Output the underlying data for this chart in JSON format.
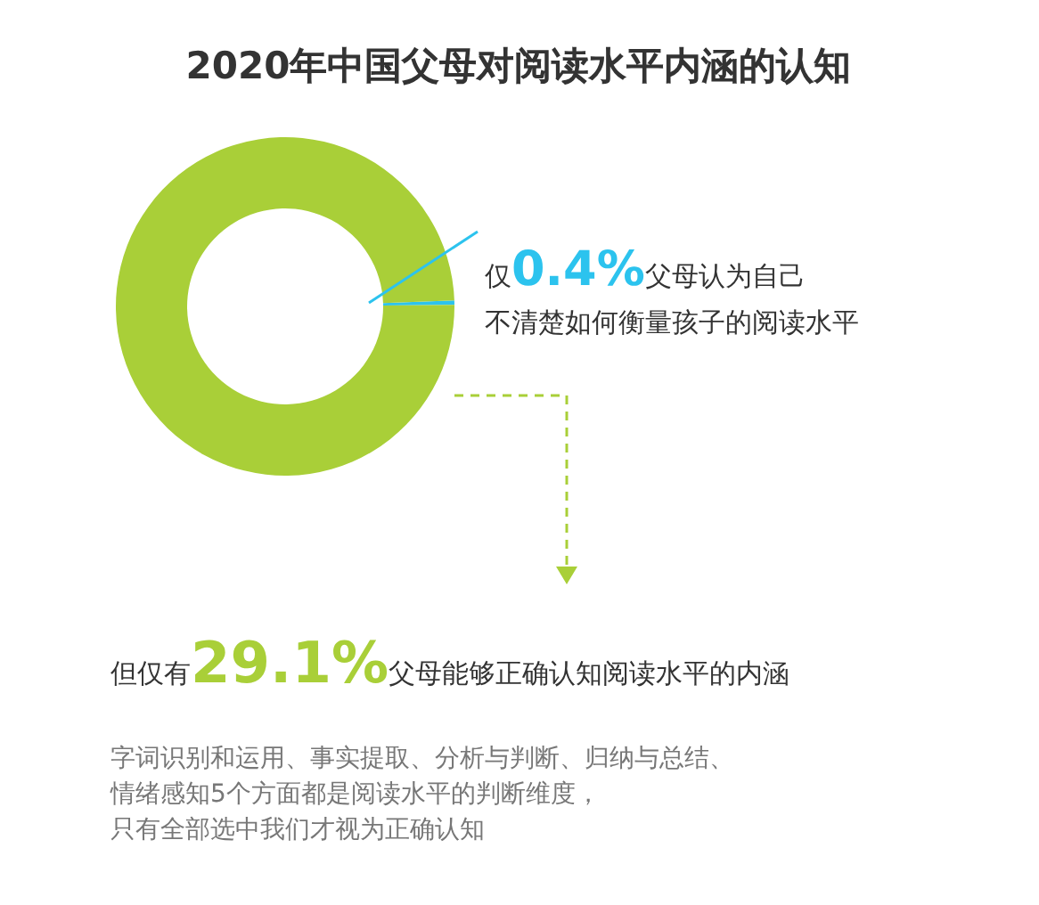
{
  "chart_data": {
    "type": "donut",
    "title": "2020年中国父母对阅读水平内涵的认知",
    "categories": [
      null,
      null
    ],
    "values": [
      0.4,
      99.6
    ],
    "colors": [
      "#2cc3ee",
      "#a9cf38"
    ],
    "annotations": [
      "仅**0.4%**父母认为自己",
      "不清楚如何衡量孩子的阅读水平",
      "但仅有**29.1%**父母能够正确认知阅读水平的内涵",
      "字词识别和运用、事实提取、分析与判断、归纳与总结、",
      "情绪感知5个方面都是阅读水平的判断维度，",
      "只有全部选中我们才视为正确认知"
    ]
  }
}
